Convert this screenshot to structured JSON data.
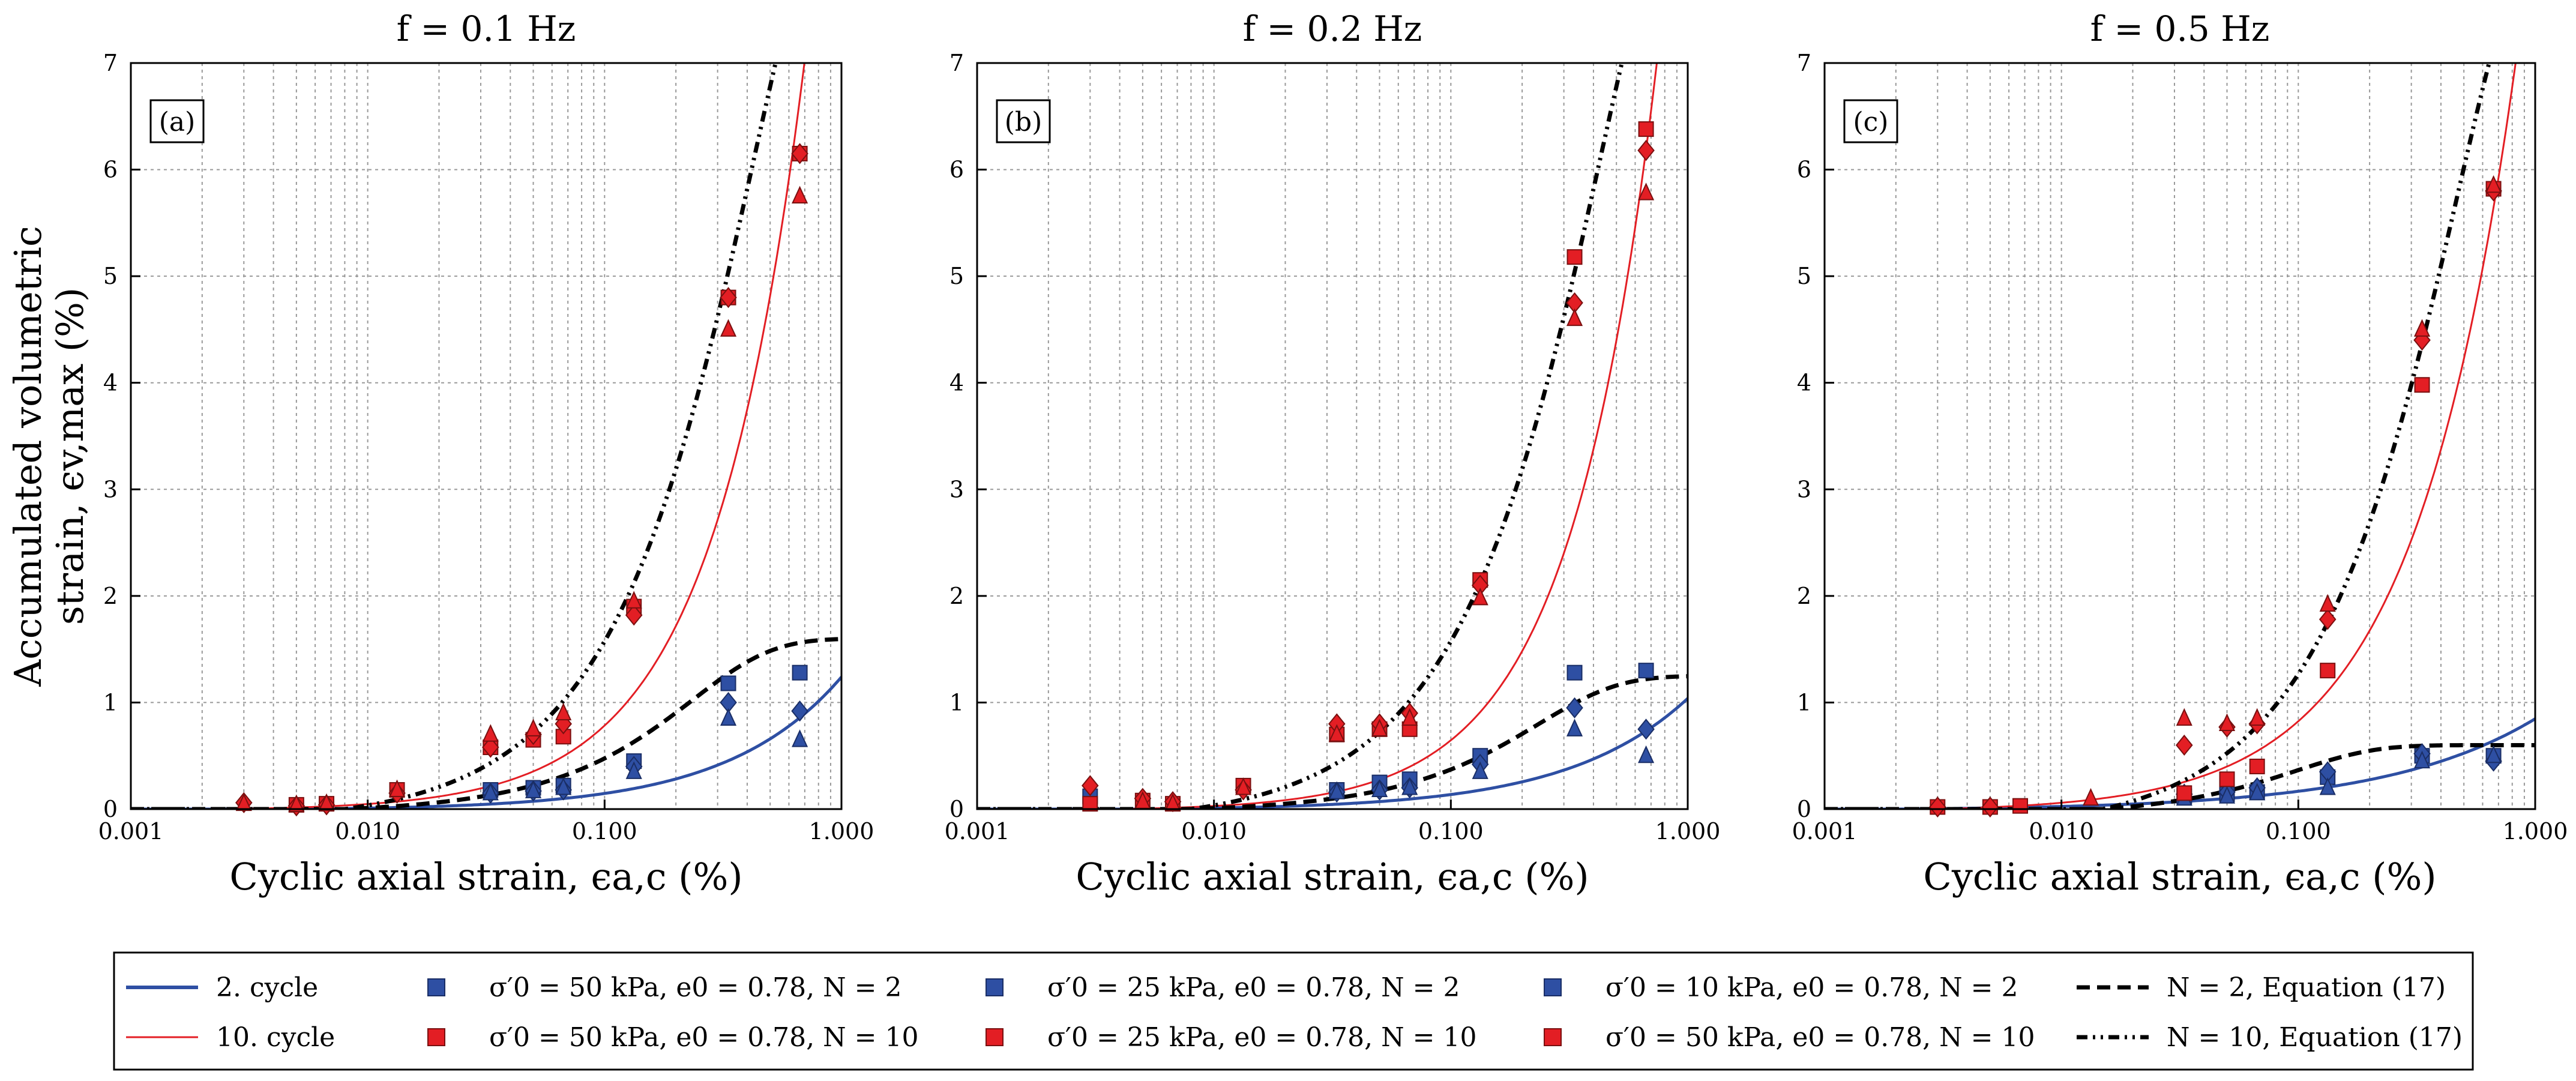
{
  "figure": {
    "ylabel_lines": [
      "Accumulated volumetric",
      "strain, ϵv,max (%)"
    ],
    "xlabel": "Cyclic axial strain, ϵa,c (%)",
    "x_ticks": [
      "0.001",
      "0.010",
      "0.100",
      "1.000"
    ],
    "y_ticks": [
      "0",
      "1",
      "2",
      "3",
      "4",
      "5",
      "6",
      "7"
    ]
  },
  "legend": {
    "col1": [
      "2. cycle",
      "10. cycle"
    ],
    "col2": [
      "σ′0 = 50 kPa, e0 = 0.78, N = 2",
      "σ′0 = 50 kPa, e0 = 0.78, N = 10"
    ],
    "col3": [
      "σ′0 = 25 kPa, e0 = 0.78, N = 2",
      "σ′0 = 25 kPa, e0 = 0.78, N = 10"
    ],
    "col4": [
      "σ′0 = 10 kPa, e0 = 0.78, N = 2",
      "σ′0 = 50 kPa, e0 = 0.78, N = 10"
    ],
    "col5": [
      "N = 2, Equation (17)",
      "N = 10, Equation (17)"
    ]
  },
  "colors": {
    "blue": "#2e4fa3",
    "red": "#e31e24",
    "grid": "#999999"
  },
  "chart_data": [
    {
      "type": "scatter",
      "title": "f = 0.1 Hz",
      "panel_label": "(a)",
      "xscale": "log",
      "xlim": [
        0.001,
        1.0
      ],
      "ylim": [
        0,
        7
      ],
      "series": [
        {
          "name": "50 kPa N=2",
          "marker": "square",
          "color": "blue",
          "x": [
            0.033,
            0.05,
            0.067,
            0.133,
            0.333,
            0.667
          ],
          "y": [
            0.18,
            0.2,
            0.22,
            0.45,
            1.18,
            1.28
          ]
        },
        {
          "name": "25 kPa N=2",
          "marker": "diamond",
          "color": "blue",
          "x": [
            0.033,
            0.05,
            0.067,
            0.133,
            0.333,
            0.667
          ],
          "y": [
            0.15,
            0.17,
            0.18,
            0.4,
            1.0,
            0.92
          ]
        },
        {
          "name": "10 kPa N=2",
          "marker": "triangle",
          "color": "blue",
          "x": [
            0.033,
            0.05,
            0.067,
            0.133,
            0.333,
            0.667
          ],
          "y": [
            0.15,
            0.17,
            0.2,
            0.35,
            0.85,
            0.65
          ]
        },
        {
          "name": "50 kPa N=10",
          "marker": "square",
          "color": "red",
          "x": [
            0.005,
            0.0067,
            0.0133,
            0.033,
            0.05,
            0.067,
            0.133,
            0.333,
            0.667
          ],
          "y": [
            0.04,
            0.05,
            0.18,
            0.58,
            0.65,
            0.68,
            1.9,
            4.8,
            6.15
          ]
        },
        {
          "name": "25 kPa N=10",
          "marker": "diamond",
          "color": "red",
          "x": [
            0.003,
            0.005,
            0.0067,
            0.0133,
            0.033,
            0.05,
            0.067,
            0.133,
            0.333,
            0.667
          ],
          "y": [
            0.06,
            0.03,
            0.04,
            0.15,
            0.58,
            0.7,
            0.8,
            1.82,
            4.8,
            6.15
          ]
        },
        {
          "name": "50 kPa N=10 (b)",
          "marker": "triangle",
          "color": "red",
          "x": [
            0.003,
            0.005,
            0.0067,
            0.0133,
            0.033,
            0.05,
            0.067,
            0.133,
            0.333,
            0.667
          ],
          "y": [
            0.05,
            0.04,
            0.05,
            0.18,
            0.7,
            0.75,
            0.9,
            1.95,
            4.5,
            5.75
          ]
        }
      ],
      "curves": [
        {
          "name": "2. cycle",
          "color": "blue",
          "style": "solid",
          "y_at_1": 1.25,
          "power": 0.9,
          "x0": 0.005
        },
        {
          "name": "10. cycle",
          "color": "red",
          "style": "solid",
          "y_at_1": 10.5,
          "power": 1.12,
          "x0": 0.0025
        },
        {
          "name": "N = 2, Equation (17)",
          "color": "black",
          "style": "dashed",
          "cap": 1.6,
          "scale": 0.3,
          "x0": 0.008
        },
        {
          "name": "N = 10, Equation (17)",
          "color": "black",
          "style": "dashdot",
          "cap": 9.5,
          "scale": 0.55,
          "x0": 0.008
        }
      ]
    },
    {
      "type": "scatter",
      "title": "f = 0.2 Hz",
      "panel_label": "(b)",
      "xscale": "log",
      "xlim": [
        0.001,
        1.0
      ],
      "ylim": [
        0,
        7
      ],
      "series": [
        {
          "name": "50 kPa N=2",
          "marker": "square",
          "color": "blue",
          "x": [
            0.003,
            0.033,
            0.05,
            0.067,
            0.133,
            0.333,
            0.667
          ],
          "y": [
            0.12,
            0.18,
            0.25,
            0.28,
            0.5,
            1.28,
            1.3
          ]
        },
        {
          "name": "25 kPa N=2",
          "marker": "diamond",
          "color": "blue",
          "x": [
            0.033,
            0.05,
            0.067,
            0.133,
            0.333,
            0.667
          ],
          "y": [
            0.16,
            0.18,
            0.2,
            0.42,
            0.95,
            0.75
          ]
        },
        {
          "name": "10 kPa N=2",
          "marker": "triangle",
          "color": "blue",
          "x": [
            0.033,
            0.05,
            0.067,
            0.133,
            0.333,
            0.667
          ],
          "y": [
            0.16,
            0.18,
            0.2,
            0.35,
            0.75,
            0.5
          ]
        },
        {
          "name": "50 kPa N=10",
          "marker": "square",
          "color": "red",
          "x": [
            0.003,
            0.005,
            0.0067,
            0.0133,
            0.033,
            0.05,
            0.067,
            0.133,
            0.333,
            0.667
          ],
          "y": [
            0.05,
            0.08,
            0.05,
            0.22,
            0.7,
            0.75,
            0.75,
            2.15,
            5.18,
            6.38
          ]
        },
        {
          "name": "25 kPa N=10",
          "marker": "diamond",
          "color": "red",
          "x": [
            0.003,
            0.005,
            0.0067,
            0.0133,
            0.033,
            0.05,
            0.067,
            0.133,
            0.333,
            0.667
          ],
          "y": [
            0.22,
            0.1,
            0.07,
            0.18,
            0.8,
            0.8,
            0.9,
            2.1,
            4.75,
            6.18
          ]
        },
        {
          "name": "50 kPa N=10 (b)",
          "marker": "triangle",
          "color": "red",
          "x": [
            0.005,
            0.0067,
            0.0133,
            0.033,
            0.05,
            0.067,
            0.133,
            0.333,
            0.667
          ],
          "y": [
            0.07,
            0.05,
            0.2,
            0.7,
            0.75,
            0.85,
            1.98,
            4.6,
            5.78
          ]
        }
      ],
      "curves": [
        {
          "name": "2. cycle",
          "color": "blue",
          "style": "solid",
          "y_at_1": 1.05,
          "power": 0.85,
          "x0": 0.005
        },
        {
          "name": "10. cycle",
          "color": "red",
          "style": "solid",
          "y_at_1": 10.0,
          "power": 1.18,
          "x0": 0.004
        },
        {
          "name": "N = 2, Equation (17)",
          "color": "black",
          "style": "dashed",
          "cap": 1.25,
          "scale": 0.3,
          "x0": 0.008
        },
        {
          "name": "N = 10, Equation (17)",
          "color": "black",
          "style": "dashdot",
          "cap": 9.5,
          "scale": 0.55,
          "x0": 0.008
        }
      ]
    },
    {
      "type": "scatter",
      "title": "f = 0.5 Hz",
      "panel_label": "(c)",
      "xscale": "log",
      "xlim": [
        0.001,
        1.0
      ],
      "ylim": [
        0,
        7
      ],
      "series": [
        {
          "name": "50 kPa N=2",
          "marker": "square",
          "color": "blue",
          "x": [
            0.033,
            0.05,
            0.067,
            0.133,
            0.333,
            0.667
          ],
          "y": [
            0.12,
            0.14,
            0.16,
            0.3,
            0.5,
            0.5
          ]
        },
        {
          "name": "25 kPa N=2",
          "marker": "diamond",
          "color": "blue",
          "x": [
            0.033,
            0.05,
            0.067,
            0.133,
            0.333,
            0.667
          ],
          "y": [
            0.14,
            0.16,
            0.2,
            0.35,
            0.52,
            0.45
          ]
        },
        {
          "name": "10 kPa N=2",
          "marker": "triangle",
          "color": "blue",
          "x": [
            0.033,
            0.05,
            0.067,
            0.133,
            0.333,
            0.667
          ],
          "y": [
            0.1,
            0.12,
            0.15,
            0.2,
            0.45,
            0.5
          ]
        },
        {
          "name": "50 kPa N=10",
          "marker": "square",
          "color": "red",
          "x": [
            0.003,
            0.005,
            0.0067,
            0.033,
            0.05,
            0.067,
            0.133,
            0.333,
            0.667
          ],
          "y": [
            0.02,
            0.02,
            0.03,
            0.15,
            0.28,
            0.4,
            1.3,
            3.98,
            5.82
          ]
        },
        {
          "name": "25 kPa N=10",
          "marker": "diamond",
          "color": "red",
          "x": [
            0.003,
            0.005,
            0.033,
            0.05,
            0.067,
            0.133,
            0.333,
            0.667
          ],
          "y": [
            0.02,
            0.02,
            0.6,
            0.77,
            0.8,
            1.78,
            4.4,
            5.8
          ]
        },
        {
          "name": "50 kPa N=10 (b)",
          "marker": "triangle",
          "color": "red",
          "x": [
            0.0133,
            0.033,
            0.05,
            0.067,
            0.133,
            0.333,
            0.667
          ],
          "y": [
            0.1,
            0.85,
            0.8,
            0.85,
            1.92,
            4.5,
            5.85
          ]
        }
      ],
      "curves": [
        {
          "name": "2. cycle",
          "color": "blue",
          "style": "solid",
          "y_at_1": 0.86,
          "power": 0.68,
          "x0": 0.002
        },
        {
          "name": "10. cycle",
          "color": "red",
          "style": "solid",
          "y_at_1": 8.5,
          "power": 1.0,
          "x0": 0.003
        },
        {
          "name": "N = 2, Equation (17)",
          "color": "black",
          "style": "dashed",
          "cap": 0.6,
          "scale": 0.12,
          "x0": 0.015
        },
        {
          "name": "N = 10, Equation (17)",
          "color": "black",
          "style": "dashdot",
          "cap": 9.0,
          "scale": 0.6,
          "x0": 0.015
        }
      ]
    }
  ]
}
